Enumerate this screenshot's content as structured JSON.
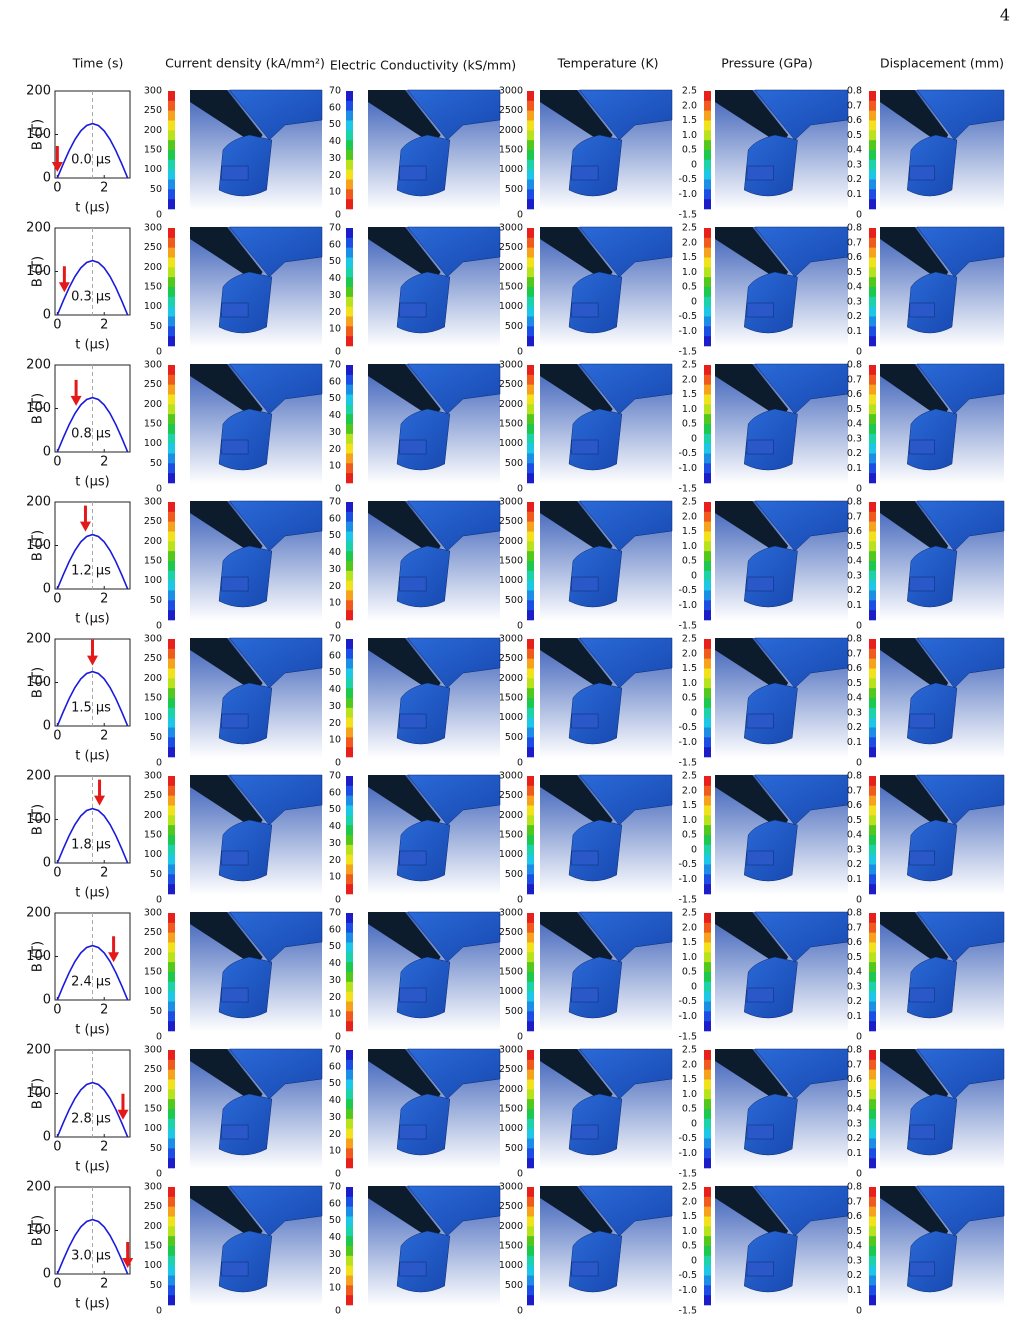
{
  "page_number": "4",
  "headers": [
    "Time (s)",
    "Current density (kA/mm²)",
    "Electric Conductivity (kS/mm)",
    "Temperature (K)",
    "Pressure (GPa)",
    "Displacement (mm)"
  ],
  "time_plot": {
    "type": "line",
    "y_label": "B (T)",
    "x_label": "t (μs)",
    "color": "#1a1adc",
    "x": [
      0,
      0.25,
      0.5,
      0.75,
      1,
      1.25,
      1.5,
      1.75,
      2,
      2.25,
      2.5,
      2.75,
      3
    ],
    "values": [
      0,
      32.4,
      62.5,
      88.4,
      108.3,
      120.7,
      125,
      120.7,
      108.3,
      88.4,
      62.5,
      32.4,
      0
    ],
    "xlim": [
      -0.1,
      3.1
    ],
    "ylim": [
      0,
      200
    ],
    "xticks": [
      0,
      2
    ],
    "yticks": [
      0,
      100,
      200
    ],
    "peak_time": 1.5
  },
  "rows": [
    {
      "time": 0.0,
      "label": "0.0 μs"
    },
    {
      "time": 0.3,
      "label": "0.3 μs"
    },
    {
      "time": 0.8,
      "label": "0.8 μs"
    },
    {
      "time": 1.2,
      "label": "1.2 μs"
    },
    {
      "time": 1.5,
      "label": "1.5 μs"
    },
    {
      "time": 1.8,
      "label": "1.8 μs"
    },
    {
      "time": 2.4,
      "label": "2.4 μs"
    },
    {
      "time": 2.8,
      "label": "2.8 μs"
    },
    {
      "time": 3.0,
      "label": "3.0 μs"
    }
  ],
  "colorbars": [
    {
      "lim": [
        0,
        300
      ],
      "ticks": [
        0,
        50,
        100,
        150,
        200,
        250,
        300
      ],
      "colors": [
        "#e8201c",
        "#f05a1c",
        "#f7a21c",
        "#f2e21c",
        "#b8e21c",
        "#52c81c",
        "#1cc84e",
        "#1cd2a8",
        "#1cc8e6",
        "#1c8ee6",
        "#1c4ee6",
        "#1c1cc8"
      ]
    },
    {
      "lim": [
        0,
        70
      ],
      "ticks": [
        0,
        10,
        20,
        30,
        40,
        50,
        60,
        70
      ],
      "colors": [
        "#1c1cc8",
        "#1c4ee6",
        "#1c8ee6",
        "#1cc8e6",
        "#1cd2a8",
        "#1cc84e",
        "#52c81c",
        "#b8e21c",
        "#f2e21c",
        "#f7a21c",
        "#f05a1c",
        "#e8201c"
      ]
    },
    {
      "lim": [
        0,
        3000
      ],
      "ticks": [
        0,
        500,
        1000,
        1500,
        2000,
        2500,
        3000
      ],
      "colors": [
        "#e8201c",
        "#f05a1c",
        "#f7a21c",
        "#f2e21c",
        "#b8e21c",
        "#52c81c",
        "#1cc84e",
        "#1cd2a8",
        "#1cc8e6",
        "#1c8ee6",
        "#1c4ee6",
        "#1c1cc8"
      ]
    },
    {
      "lim": [
        -1.5,
        2.5
      ],
      "ticks": [
        2.5,
        {
          "value": 2,
          "label": "2.0"
        },
        1.5,
        {
          "value": 1,
          "label": "1.0"
        },
        0.5,
        0,
        -0.5,
        {
          "value": -1,
          "label": "-1.0"
        },
        -1.5
      ],
      "colors": [
        "#e8201c",
        "#f05a1c",
        "#f7a21c",
        "#f2e21c",
        "#b8e21c",
        "#52c81c",
        "#1cc84e",
        "#1cd2a8",
        "#1cc8e6",
        "#1c8ee6",
        "#1c4ee6",
        "#1c1cc8"
      ]
    },
    {
      "lim": [
        0,
        0.8
      ],
      "ticks": [
        0.8,
        0.7,
        0.6,
        0.5,
        0.4,
        0.3,
        0.2,
        0.1,
        0
      ],
      "colors": [
        "#e8201c",
        "#f05a1c",
        "#f7a21c",
        "#f2e21c",
        "#b8e21c",
        "#52c81c",
        "#1cc84e",
        "#1cd2a8",
        "#1cc8e6",
        "#1c8ee6",
        "#1c4ee6",
        "#1c1cc8"
      ]
    }
  ]
}
